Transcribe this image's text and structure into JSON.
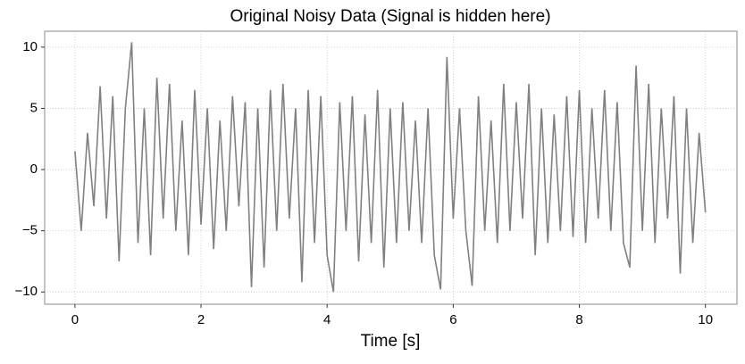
{
  "chart_data": {
    "type": "line",
    "title": "Original Noisy Data (Signal is hidden here)",
    "xlabel": "Time [s]",
    "x": [
      0,
      0.1,
      0.2,
      0.3,
      0.4,
      0.5,
      0.6,
      0.7,
      0.8,
      0.9,
      1.0,
      1.1,
      1.2,
      1.3,
      1.4,
      1.5,
      1.6,
      1.7,
      1.8,
      1.9,
      2.0,
      2.1,
      2.2,
      2.3,
      2.4,
      2.5,
      2.6,
      2.7,
      2.8,
      2.9,
      3.0,
      3.1,
      3.2,
      3.3,
      3.4,
      3.5,
      3.6,
      3.7,
      3.8,
      3.9,
      4.0,
      4.1,
      4.2,
      4.3,
      4.4,
      4.5,
      4.6,
      4.7,
      4.8,
      4.9,
      5.0,
      5.1,
      5.2,
      5.3,
      5.4,
      5.5,
      5.6,
      5.7,
      5.8,
      5.9,
      6.0,
      6.1,
      6.2,
      6.3,
      6.4,
      6.5,
      6.6,
      6.7,
      6.8,
      6.9,
      7.0,
      7.1,
      7.2,
      7.3,
      7.4,
      7.5,
      7.6,
      7.7,
      7.8,
      7.9,
      8.0,
      8.1,
      8.2,
      8.3,
      8.4,
      8.5,
      8.6,
      8.7,
      8.8,
      8.9,
      9.0,
      9.1,
      9.2,
      9.3,
      9.4,
      9.5,
      9.6,
      9.7,
      9.8,
      9.9,
      10.0
    ],
    "series": [
      {
        "color": "#808080",
        "values": [
          1.5,
          -5,
          3,
          -3,
          6.8,
          -4,
          6,
          -7.5,
          5,
          10.4,
          -6,
          5,
          -7,
          7.5,
          -4,
          7,
          -5,
          4,
          -7,
          6.5,
          -4.5,
          5,
          -6.5,
          4,
          -5,
          6,
          -3,
          5.5,
          -9.6,
          5,
          -8,
          6.5,
          -5,
          7,
          -4,
          5,
          -9.2,
          6.5,
          -6,
          6,
          -7,
          -10,
          5.5,
          -5,
          6,
          -7.5,
          4.5,
          -6,
          6.5,
          -8,
          5,
          -6,
          5.5,
          -5,
          4,
          -6,
          5,
          -7,
          -9.8,
          9.2,
          -4,
          5,
          -5,
          -9.5,
          6,
          -5,
          4,
          -6,
          7,
          -5,
          5.5,
          -4,
          7,
          -7,
          5,
          -6,
          4.5,
          -5,
          6,
          -5.5,
          6.5,
          -6,
          5,
          -4,
          6.5,
          -5,
          5.5,
          -6,
          -8,
          8.5,
          -5,
          7,
          -6,
          5,
          -4,
          6,
          -8.5,
          5,
          -6,
          3,
          -3.5
        ]
      }
    ],
    "xlim": [
      -0.48,
      10.5
    ],
    "ylim": [
      -11,
      11.3
    ],
    "xticks": [
      0,
      2,
      4,
      6,
      8,
      10
    ],
    "yticks": [
      {
        "value": -10,
        "label": "−10"
      },
      {
        "value": -5,
        "label": "−5"
      },
      0,
      5,
      10
    ],
    "grid": true
  }
}
